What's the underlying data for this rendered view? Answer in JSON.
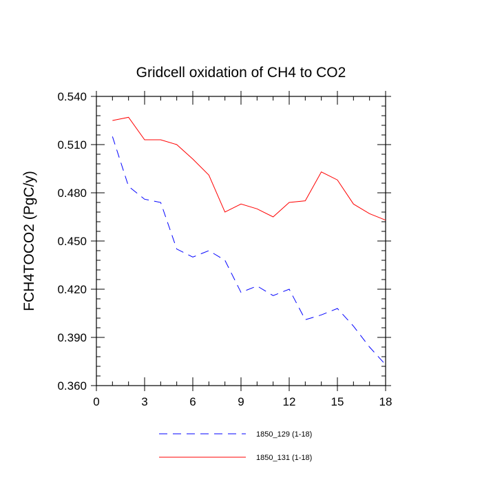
{
  "chart_data": {
    "type": "line",
    "title": "Gridcell oxidation of CH4 to CO2",
    "xlabel": "",
    "ylabel": "FCH4TOCO2  (PgC/y)",
    "xlim": [
      0,
      18
    ],
    "ylim": [
      0.36,
      0.54
    ],
    "x_ticks": [
      0,
      3,
      6,
      9,
      12,
      15,
      18
    ],
    "x_tick_labels": [
      "0",
      "3",
      "6",
      "9",
      "12",
      "15",
      "18"
    ],
    "y_ticks": [
      0.36,
      0.39,
      0.42,
      0.45,
      0.48,
      0.51,
      0.54
    ],
    "y_tick_labels": [
      "0.360",
      "0.390",
      "0.420",
      "0.450",
      "0.480",
      "0.510",
      "0.540"
    ],
    "x": [
      1,
      2,
      3,
      4,
      5,
      6,
      7,
      8,
      9,
      10,
      11,
      12,
      13,
      14,
      15,
      16,
      17,
      18
    ],
    "series": [
      {
        "name": "1850_129 (1-18)",
        "color": "#0000ff",
        "dash": "dashed",
        "values": [
          0.515,
          0.484,
          0.476,
          0.474,
          0.445,
          0.44,
          0.444,
          0.438,
          0.418,
          0.422,
          0.416,
          0.42,
          0.401,
          0.404,
          0.408,
          0.397,
          0.384,
          0.373
        ]
      },
      {
        "name": "1850_131 (1-18)",
        "color": "#ff0000",
        "dash": "solid",
        "values": [
          0.525,
          0.527,
          0.513,
          0.513,
          0.51,
          0.501,
          0.491,
          0.468,
          0.473,
          0.47,
          0.465,
          0.474,
          0.475,
          0.493,
          0.488,
          0.473,
          0.467,
          0.463
        ]
      }
    ],
    "legend_position": "bottom",
    "grid": false
  }
}
